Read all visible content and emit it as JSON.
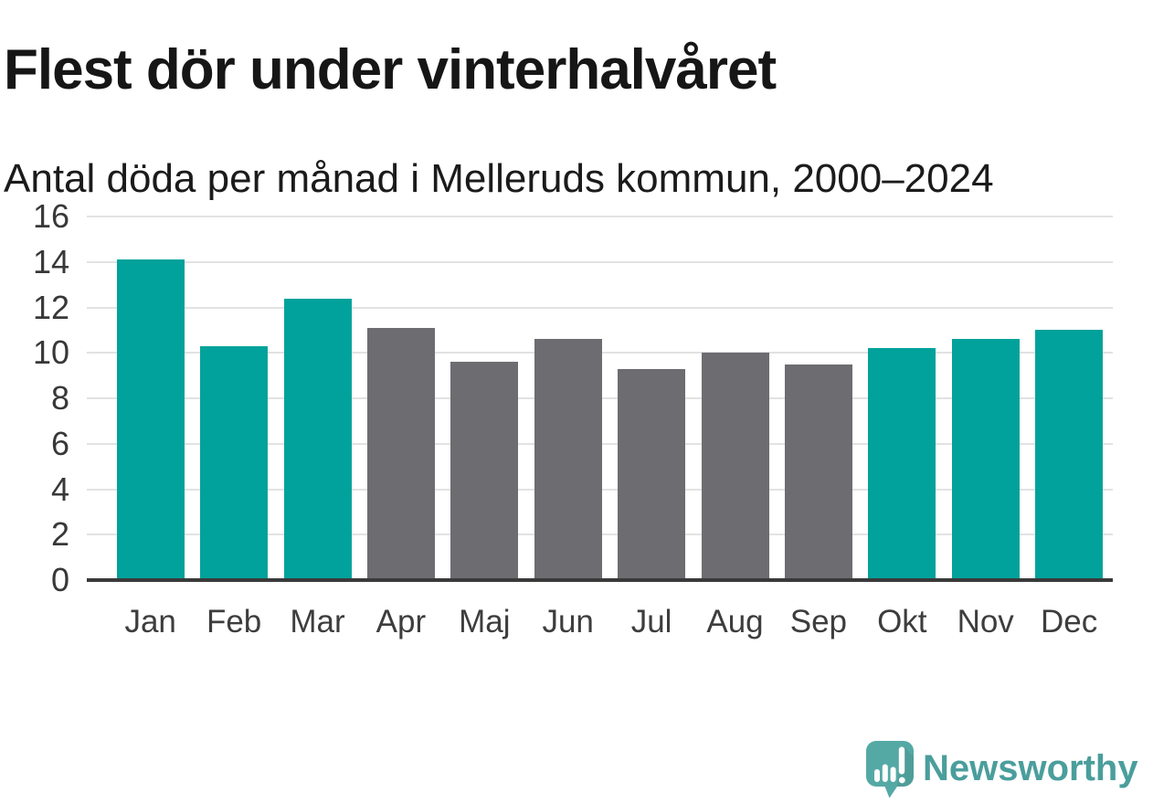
{
  "header": {
    "title": "Flest dör under vinterhalvåret",
    "subtitle": "Antal döda per månad i Melleruds kommun, 2000–2024"
  },
  "chart_data": {
    "type": "bar",
    "categories": [
      "Jan",
      "Feb",
      "Mar",
      "Apr",
      "Maj",
      "Jun",
      "Jul",
      "Aug",
      "Sep",
      "Okt",
      "Nov",
      "Dec"
    ],
    "values": [
      14.1,
      10.3,
      12.4,
      11.1,
      9.6,
      10.6,
      9.3,
      10.0,
      9.5,
      10.2,
      10.6,
      11.0
    ],
    "bar_color_keys": [
      "winter",
      "winter",
      "winter",
      "summer",
      "summer",
      "summer",
      "summer",
      "summer",
      "summer",
      "winter",
      "winter",
      "winter"
    ],
    "series_colors": {
      "winter": "#00a29b",
      "summer": "#6c6c71"
    },
    "title": "Flest dör under vinterhalvåret",
    "subtitle": "Antal döda per månad i Melleruds kommun, 2000–2024",
    "xlabel": "",
    "ylabel": "",
    "ylim": [
      0,
      16
    ],
    "yticks": [
      0,
      2,
      4,
      6,
      8,
      10,
      12,
      14,
      16
    ],
    "grid": true,
    "legend": false,
    "gridline_color": "#e2e2e2",
    "axis_color": "#3a3a3a",
    "tick_label_color": "#383838"
  },
  "branding": {
    "name": "Newsworthy",
    "text_color": "#4a9e9c",
    "logo_color": "#55a9a5"
  }
}
